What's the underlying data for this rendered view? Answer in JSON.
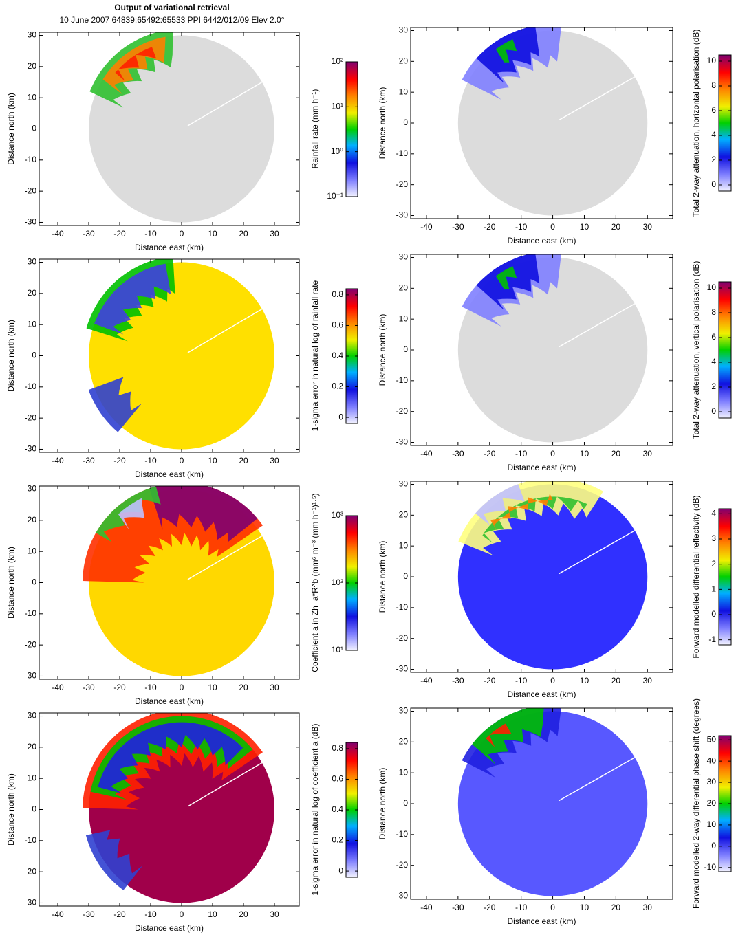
{
  "header": {
    "title": "Output of variational retrieval",
    "subtitle": "10 June 2007 64839:65492:65533 PPI 6442/012/09 Elev  2.0°"
  },
  "panels": [
    {
      "xlabel": "Distance east (km)",
      "ylabel": "Distance north (km)",
      "xlim": [
        -46,
        38
      ],
      "ylim": [
        -31,
        31
      ],
      "xticks": [
        -40,
        -30,
        -20,
        -10,
        0,
        10,
        20,
        30
      ],
      "yticks": [
        -30,
        -20,
        -10,
        0,
        10,
        20,
        30
      ],
      "colorbar": {
        "label": "Rainfall rate (mm h⁻¹)",
        "log": true,
        "lim": [
          0.1,
          100
        ],
        "ticks": [
          {
            "value": 0.1,
            "label": "10⁻¹"
          },
          {
            "value": 1,
            "label": "10⁰"
          },
          {
            "value": 10,
            "label": "10¹"
          },
          {
            "value": 100,
            "label": "10²"
          }
        ]
      }
    },
    {
      "xlabel": "Distance east (km)",
      "ylabel": "Distance north (km)",
      "xlim": [
        -46,
        38
      ],
      "ylim": [
        -31,
        31
      ],
      "xticks": [
        -40,
        -30,
        -20,
        -10,
        0,
        10,
        20,
        30
      ],
      "yticks": [
        -30,
        -20,
        -10,
        0,
        10,
        20,
        30
      ],
      "colorbar": {
        "label": "1-sigma error in natural log of rainfall rate",
        "log": false,
        "lim": [
          -0.04,
          0.84
        ],
        "ticks": [
          0,
          0.2,
          0.4,
          0.6,
          0.8
        ]
      }
    },
    {
      "xlabel": "Distance east (km)",
      "ylabel": "Distance north (km)",
      "xlim": [
        -46,
        38
      ],
      "ylim": [
        -31,
        31
      ],
      "xticks": [
        -40,
        -30,
        -20,
        -10,
        0,
        10,
        20,
        30
      ],
      "yticks": [
        -30,
        -20,
        -10,
        0,
        10,
        20,
        30
      ],
      "colorbar": {
        "label": "Coefficient a in Zh=a*R^b (mm⁶ m⁻³ (mm h⁻¹)¹·⁵)",
        "log": true,
        "lim": [
          10,
          1000
        ],
        "ticks": [
          {
            "value": 10,
            "label": "10¹"
          },
          {
            "value": 100,
            "label": "10²"
          },
          {
            "value": 1000,
            "label": "10³"
          }
        ]
      }
    },
    {
      "xlabel": "Distance east (km)",
      "ylabel": "Distance north (km)",
      "xlim": [
        -46,
        38
      ],
      "ylim": [
        -31,
        31
      ],
      "xticks": [
        -40,
        -30,
        -20,
        -10,
        0,
        10,
        20,
        30
      ],
      "yticks": [
        -30,
        -20,
        -10,
        0,
        10,
        20,
        30
      ],
      "colorbar": {
        "label": "1-sigma error in natural log of coefficient a (dB)",
        "log": false,
        "lim": [
          -0.04,
          0.84
        ],
        "ticks": [
          0,
          0.2,
          0.4,
          0.6,
          0.8
        ]
      }
    },
    {
      "xlabel": "Distance east (km)",
      "ylabel": "Distance north (km)",
      "xlim": [
        -45,
        38
      ],
      "ylim": [
        -31,
        31
      ],
      "xticks": [
        -40,
        -30,
        -20,
        -10,
        0,
        10,
        20,
        30
      ],
      "yticks": [
        -30,
        -20,
        -10,
        0,
        10,
        20,
        30
      ],
      "colorbar": {
        "label": "Total 2-way attenuation, horizontal polarisation (dB)",
        "log": false,
        "lim": [
          -0.5,
          10.5
        ],
        "ticks": [
          0,
          2,
          4,
          6,
          8,
          10
        ]
      }
    },
    {
      "xlabel": "Distance east (km)",
      "ylabel": "Distance north (km)",
      "xlim": [
        -45,
        38
      ],
      "ylim": [
        -31,
        31
      ],
      "xticks": [
        -40,
        -30,
        -20,
        -10,
        0,
        10,
        20,
        30
      ],
      "yticks": [
        -30,
        -20,
        -10,
        0,
        10,
        20,
        30
      ],
      "colorbar": {
        "label": "Total 2-way attenuation, vertical polarisation (dB)",
        "log": false,
        "lim": [
          -0.5,
          10.5
        ],
        "ticks": [
          0,
          2,
          4,
          6,
          8,
          10
        ]
      }
    },
    {
      "xlabel": "Distance east (km)",
      "ylabel": "Distance north (km)",
      "xlim": [
        -45,
        38
      ],
      "ylim": [
        -31,
        31
      ],
      "xticks": [
        -40,
        -30,
        -20,
        -10,
        0,
        10,
        20,
        30
      ],
      "yticks": [
        -30,
        -20,
        -10,
        0,
        10,
        20,
        30
      ],
      "colorbar": {
        "label": "Forward modelled differential reflectivity (dB)",
        "log": false,
        "lim": [
          -1.2,
          4.2
        ],
        "ticks": [
          -1,
          0,
          1,
          2,
          3,
          4
        ]
      }
    },
    {
      "xlabel": "Distance east (km)",
      "ylabel": "Distance north (km)",
      "xlim": [
        -45,
        38
      ],
      "ylim": [
        -31,
        31
      ],
      "xticks": [
        -40,
        -30,
        -20,
        -10,
        0,
        10,
        20,
        30
      ],
      "yticks": [
        -30,
        -20,
        -10,
        0,
        10,
        20,
        30
      ],
      "colorbar": {
        "label": "Forward modelled 2-way differential phase shift (degrees)",
        "log": false,
        "lim": [
          -12,
          52
        ],
        "ticks": [
          -10,
          0,
          10,
          20,
          30,
          40,
          50
        ]
      }
    }
  ]
}
